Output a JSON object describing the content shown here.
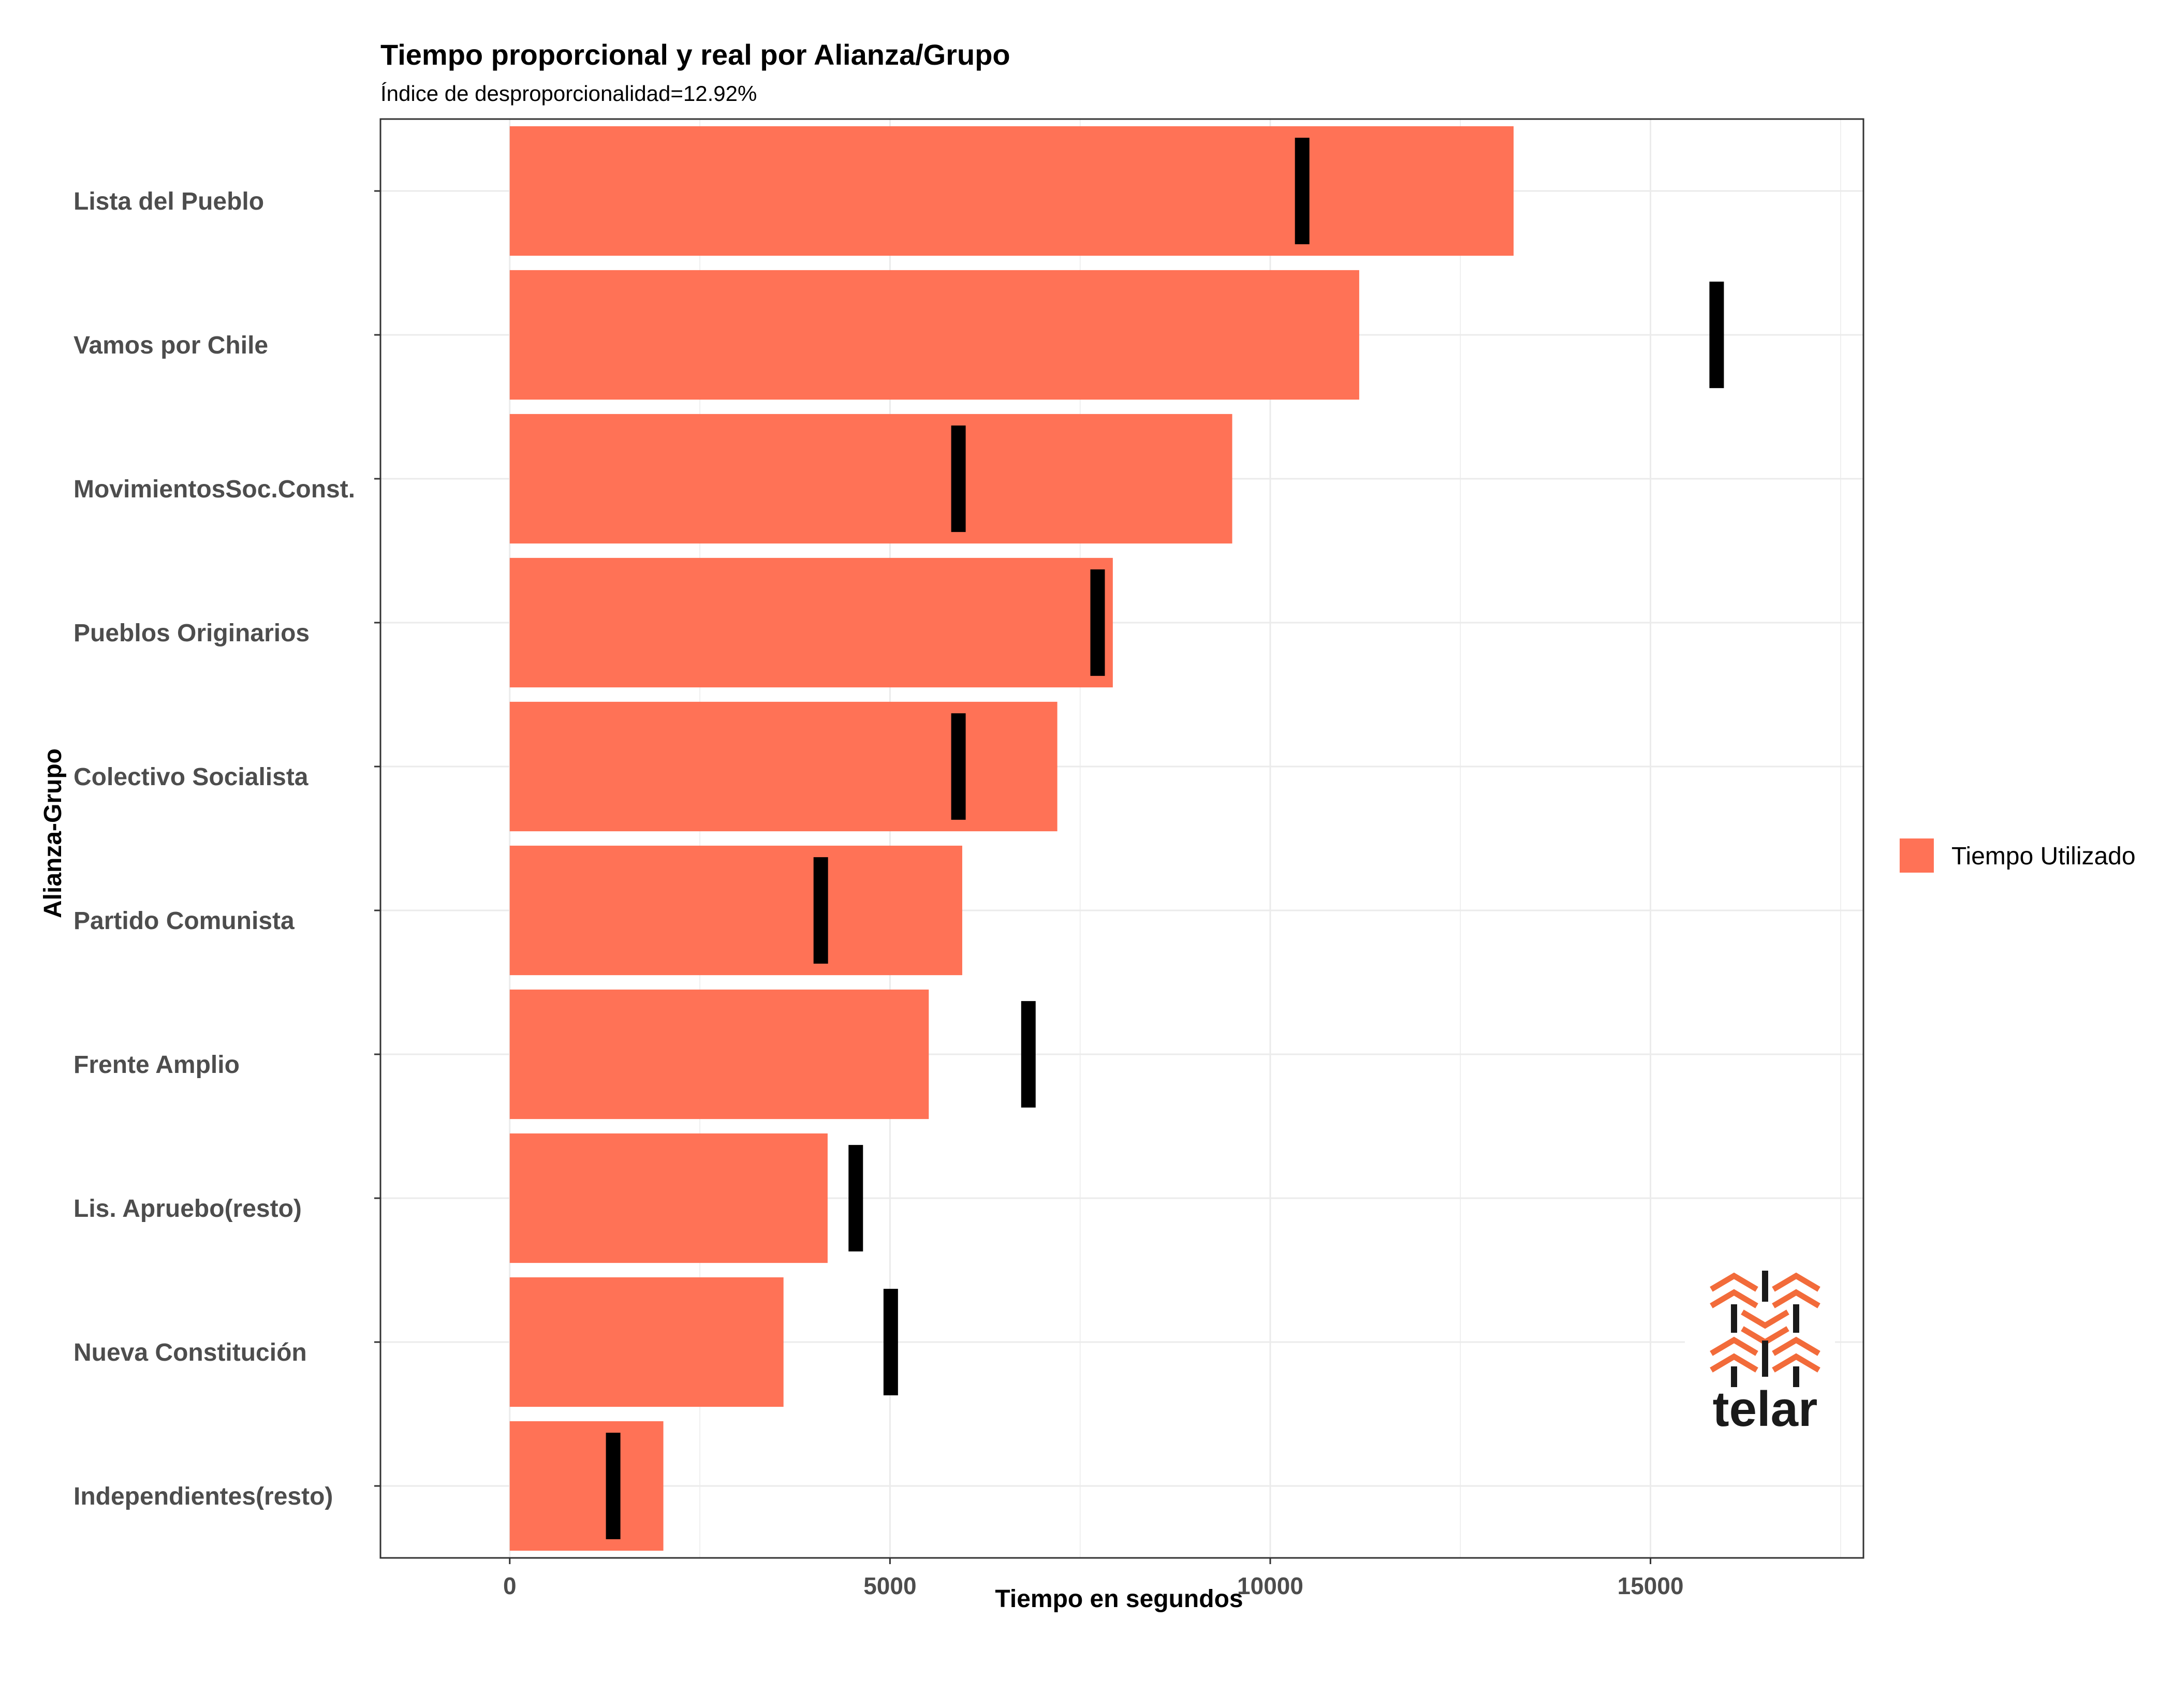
{
  "chart_data": {
    "type": "bar",
    "orientation": "horizontal",
    "title": "Tiempo proporcional y real por Alianza/Grupo",
    "subtitle": "Índice de desproporcionalidad=12.92%",
    "xlabel": "Tiempo en segundos",
    "ylabel": "Alianza-Grupo",
    "xlim": [
      -1700,
      17800
    ],
    "xticks": [
      0,
      5000,
      10000,
      15000
    ],
    "xtick_labels": [
      "0",
      "5000",
      "10000",
      "15000"
    ],
    "grid": true,
    "legend_position": "right",
    "categories": [
      "Lista del Pueblo",
      "Vamos por Chile",
      "MovimientosSoc.Const.",
      "Pueblos Originarios",
      "Colectivo Socialista",
      "Partido Comunista",
      "Frente Amplio",
      "Lis. Apruebo(resto)",
      "Nueva Constitución",
      "Independientes(resto)"
    ],
    "series": [
      {
        "name": "Tiempo Utilizado",
        "color": "#FF7256",
        "mark": "bar",
        "values": [
          13200,
          11170,
          9500,
          7930,
          7200,
          5950,
          5510,
          4180,
          3600,
          2020
        ]
      },
      {
        "color": "#000000",
        "mark": "tick",
        "values": [
          10420,
          15870,
          5900,
          7730,
          5900,
          4090,
          6820,
          4550,
          5010,
          1360
        ]
      }
    ]
  },
  "legend": {
    "items": [
      {
        "label": "Tiempo Utilizado",
        "color": "#FF7256"
      }
    ]
  },
  "logo": {
    "text": "telar",
    "accent_color": "#F26B3A",
    "ink_color": "#1a1a1a"
  }
}
